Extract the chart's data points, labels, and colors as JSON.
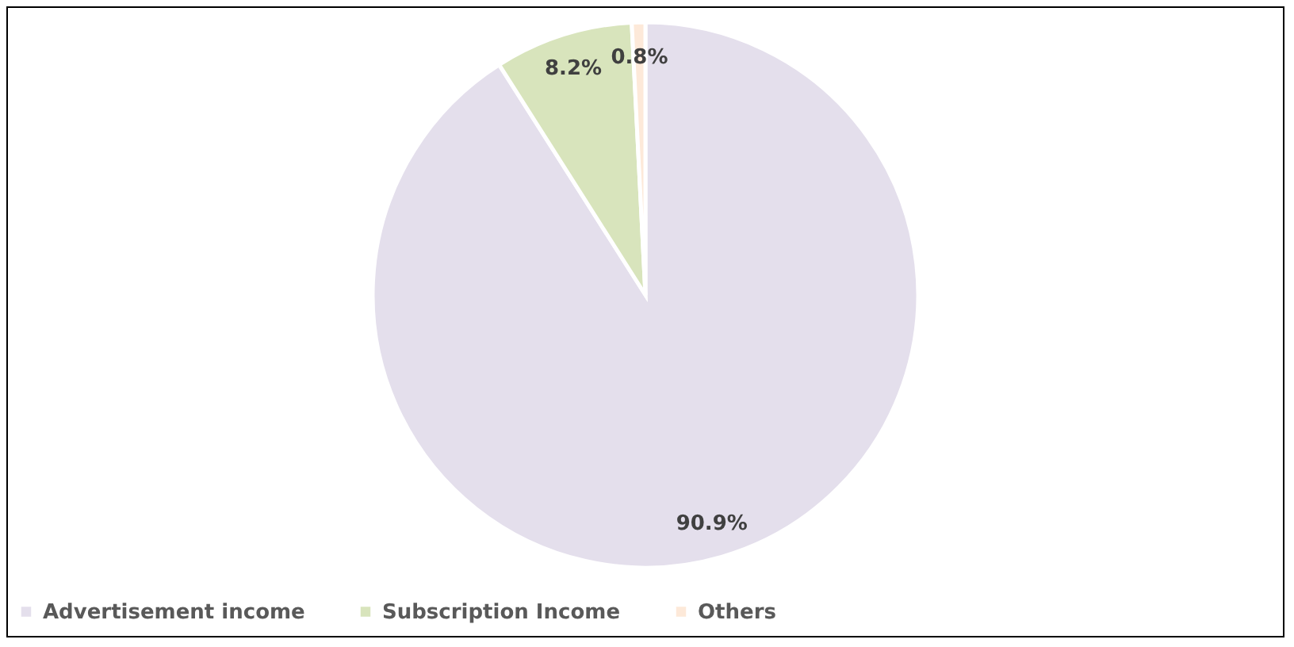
{
  "chart_data": {
    "type": "pie",
    "categories": [
      "Advertisement income",
      "Subscription Income",
      "Others"
    ],
    "values": [
      90.9,
      8.2,
      0.8
    ],
    "colors": [
      "#e4dfec",
      "#d8e4bc",
      "#fde9d9"
    ],
    "value_labels": [
      "90.9%",
      "8.2%",
      "0.8%"
    ],
    "legend": "bottom"
  }
}
